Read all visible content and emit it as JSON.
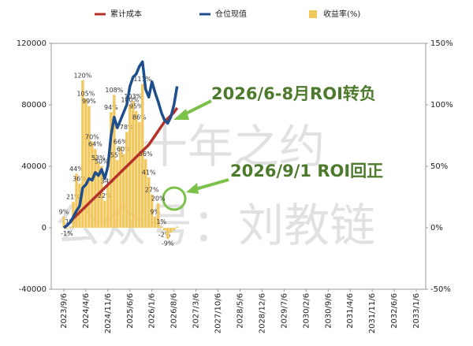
{
  "chart_data": {
    "type": "combo",
    "watermarks": [
      "十年之约",
      "公众号：刘教链"
    ],
    "annotations": [
      "2026/6-8月ROI转负",
      "2026/9/1 ROI回正"
    ],
    "x": [
      "2023/9/6",
      "2023/10/6",
      "2023/11/6",
      "2023/12/6",
      "2024/1/6",
      "2024/2/6",
      "2024/3/6",
      "2024/4/6",
      "2024/5/6",
      "2024/6/6",
      "2024/7/6",
      "2024/8/6",
      "2024/9/6",
      "2024/10/6",
      "2024/11/6",
      "2024/12/6",
      "2025/1/6",
      "2025/2/6",
      "2025/3/6",
      "2025/4/6",
      "2025/5/6",
      "2025/6/6",
      "2025/7/6",
      "2025/8/6",
      "2025/9/6",
      "2025/10/6",
      "2025/11/6",
      "2025/12/6",
      "2026/1/6",
      "2026/2/6",
      "2026/3/6",
      "2026/4/6",
      "2026/5/6",
      "2026/6/6",
      "2026/7/6",
      "2026/8/6",
      "2026/9/6"
    ],
    "xlim": [
      "2023/5/6",
      "2033/4/6"
    ],
    "xticks": [
      "2023/9/6",
      "2024/4/6",
      "2024/11/6",
      "2025/6/6",
      "2026/1/6",
      "2026/8/6",
      "2027/3/6",
      "2027/10/6",
      "2028/5/6",
      "2028/12/6",
      "2029/7/6",
      "2030/2/6",
      "2030/9/6",
      "2031/4/6",
      "2031/11/6",
      "2032/6/6",
      "2033/1/6"
    ],
    "ylim": [
      -40000,
      120000
    ],
    "yticks": [
      -40000,
      0,
      40000,
      80000,
      120000
    ],
    "y2lim": [
      -50,
      150
    ],
    "y2ticks": [
      {
        "value": -50,
        "label": "-50%"
      },
      {
        "value": 0,
        "label": "0%"
      },
      {
        "value": 50,
        "label": "50%"
      },
      {
        "value": 100,
        "label": "100%"
      },
      {
        "value": 150,
        "label": "150%"
      }
    ],
    "series": [
      {
        "name": "收益率(%)",
        "type": "bar",
        "axis": "y2",
        "color": "#f2c75c",
        "values": [
          9,
          -1,
          1,
          21,
          44,
          36,
          120,
          105,
          99,
          70,
          64,
          53,
          50,
          22,
          34,
          94,
          108,
          55,
          66,
          60,
          78,
          100,
          103,
          95,
          86,
          117,
          56,
          41,
          27,
          9,
          20,
          1,
          -2,
          -9,
          -4,
          -2,
          1
        ],
        "value_labels": [
          "9%",
          "-1%",
          "1%",
          "21%",
          "44%",
          "36%",
          "120%",
          "105%",
          "99%",
          "70%",
          "64%",
          "53%",
          "50%",
          "22%",
          "34%",
          "94%",
          "108%",
          "55%",
          "66%",
          "60%",
          "78%",
          "100%",
          "103%",
          "95%",
          "86%",
          "117%",
          "56%",
          "41%",
          "27%",
          "9%",
          "20%",
          "1%",
          "-2%",
          "-9%",
          null,
          null,
          null
        ]
      },
      {
        "name": "累计成本",
        "type": "line",
        "color": "#b5322a",
        "values": [
          0,
          1500,
          3500,
          6000,
          8000,
          10000,
          12000,
          14000,
          16000,
          18000,
          20000,
          22000,
          24000,
          26000,
          28000,
          30000,
          32000,
          34000,
          36000,
          38000,
          40000,
          42000,
          44000,
          46000,
          48000,
          50000,
          52000,
          54000,
          57000,
          60000,
          63000,
          66000,
          69000,
          71000,
          73000,
          75000,
          78000
        ]
      },
      {
        "name": "仓位现值",
        "type": "line",
        "color": "#1f4e8c",
        "values": [
          0,
          1500,
          3500,
          7000,
          11000,
          14000,
          26000,
          28000,
          32000,
          31000,
          36000,
          34000,
          38000,
          32000,
          40000,
          60000,
          72000,
          65000,
          70000,
          75000,
          80000,
          92000,
          98000,
          100000,
          105000,
          108000,
          90000,
          85000,
          95000,
          88000,
          82000,
          75000,
          70000,
          68000,
          72000,
          80000,
          92000
        ]
      }
    ]
  }
}
